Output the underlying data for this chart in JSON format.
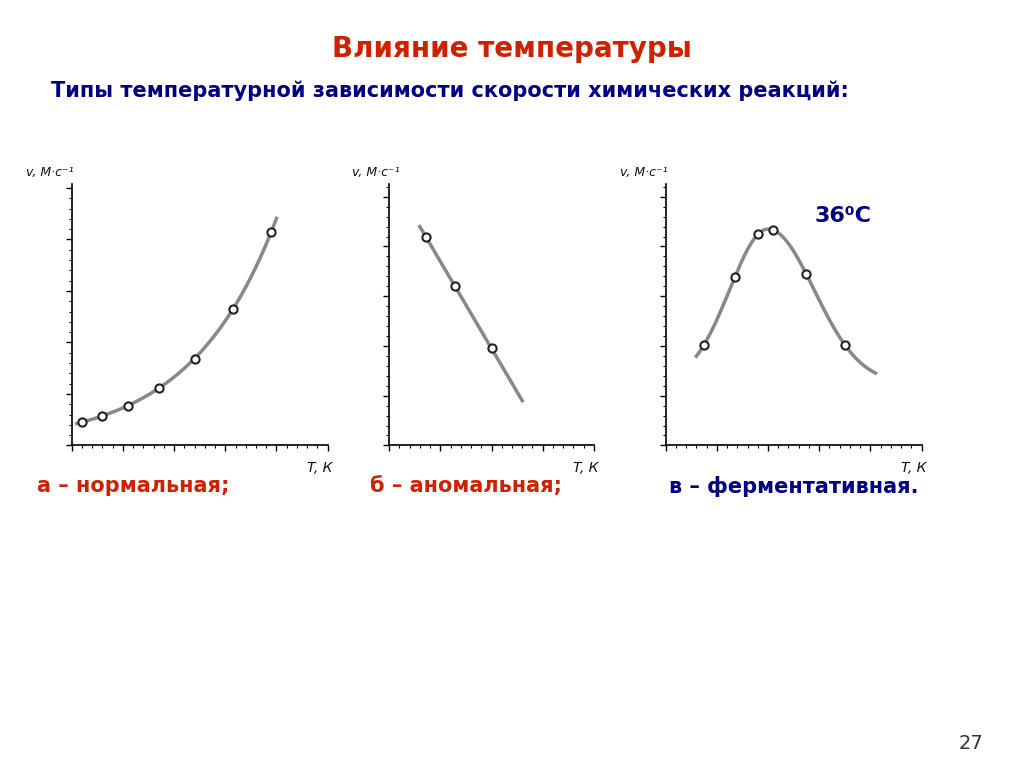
{
  "title": "Влияние температуры",
  "subtitle": "Типы температурной зависимости скорости химических реакций:",
  "title_color": "#cc2200",
  "subtitle_color": "#000080",
  "background_color": "#ffffff",
  "ylabel": "v, М·с⁻¹",
  "xlabel": "T, К",
  "label_a": "а – нормальная;",
  "label_b": "б – аномальная;",
  "label_c": "в – ферментативная.",
  "label_color_a": "#cc2200",
  "label_color_b": "#cc2200",
  "label_color_c": "#000080",
  "annotation_36": "36⁰С",
  "annotation_color": "#000080",
  "page_number": "27",
  "curve_color": "#888888",
  "dot_facecolor": "white",
  "dot_edgecolor": "#222222"
}
